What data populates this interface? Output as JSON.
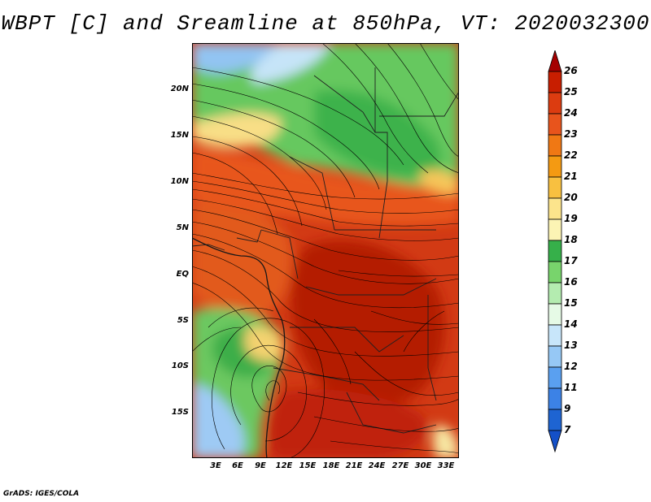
{
  "title": "WBPT [C] and Sreamline at 850hPa, VT: 2020032300",
  "credit": "GrADS: IGES/COLA",
  "map": {
    "lat_ticks": [
      "20N",
      "15N",
      "10N",
      "5N",
      "EQ",
      "5S",
      "10S",
      "15S"
    ],
    "lon_ticks": [
      "3E",
      "6E",
      "9E",
      "12E",
      "15E",
      "18E",
      "21E",
      "24E",
      "27E",
      "30E",
      "33E"
    ],
    "lon_range_deg": [
      0,
      34
    ],
    "lat_range_deg": [
      -20,
      24.5
    ]
  },
  "colorbar": {
    "labels": [
      "26",
      "25",
      "24",
      "23",
      "22",
      "21",
      "20",
      "19",
      "18",
      "17",
      "16",
      "15",
      "14",
      "13",
      "12",
      "11",
      "9",
      "7"
    ],
    "colors": [
      "#a50000",
      "#c81e00",
      "#dc3c10",
      "#e8541c",
      "#f07814",
      "#f49a12",
      "#f8c040",
      "#fce48c",
      "#fcf4b4",
      "#36b04a",
      "#78d46c",
      "#b4ecb0",
      "#e6fae6",
      "#c8e6fa",
      "#96c8f5",
      "#5aa0f0",
      "#3c82e6",
      "#1e64d2",
      "#1450c8"
    ]
  }
}
